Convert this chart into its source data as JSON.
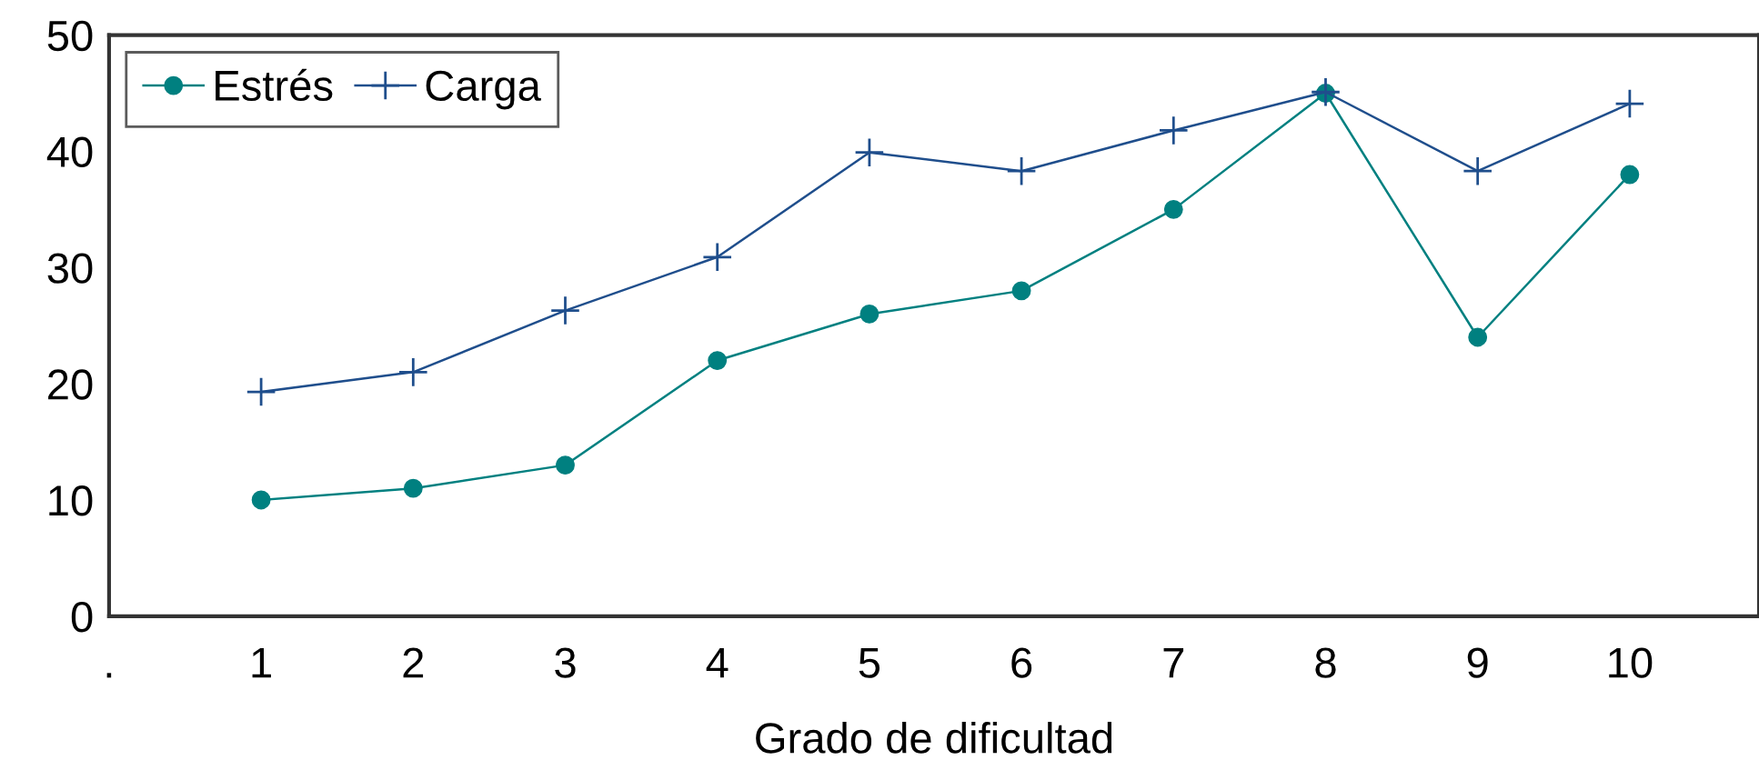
{
  "chart_data": {
    "type": "line",
    "xlabel": "Grado de dificultad",
    "categories": [
      ".",
      "1",
      "2",
      "3",
      "4",
      "5",
      "6",
      "7",
      "8",
      "9",
      "10"
    ],
    "series": [
      {
        "name": "Estrés",
        "color": "#008080",
        "marker": "circle",
        "values": [
          null,
          10,
          11,
          13,
          22,
          26,
          28,
          35,
          45,
          24,
          38
        ]
      },
      {
        "name": "Carga",
        "color": "#1f4e8c",
        "marker": "cross",
        "values": [
          null,
          19.3,
          21,
          26.3,
          30.9,
          39.9,
          38.3,
          41.8,
          45.1,
          38.3,
          44.1
        ]
      }
    ],
    "ylim": [
      0,
      50
    ],
    "yticks": [
      0,
      10,
      20,
      30,
      40,
      50
    ],
    "grid": false,
    "legend": "top left",
    "line_style": "solid"
  }
}
